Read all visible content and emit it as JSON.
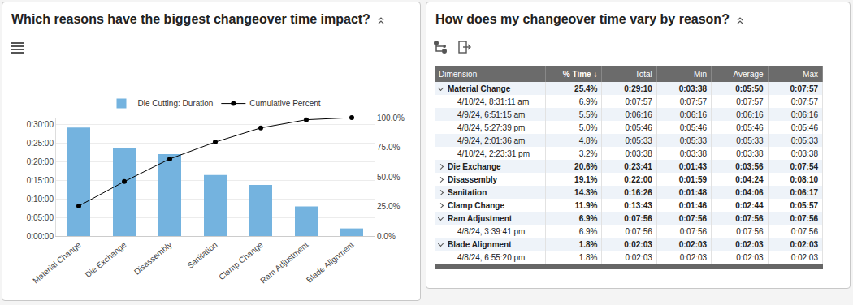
{
  "chart_data": {
    "type": "bar",
    "title": "Which reasons have the biggest changeover time impact?",
    "categories": [
      "Material Change",
      "Die Exchange",
      "Disassembly",
      "Sanitation",
      "Clamp Change",
      "Ram Adjustment",
      "Blade Alignment"
    ],
    "series": [
      {
        "name": "Die Cutting: Duration",
        "type": "bar",
        "color": "#74b3df",
        "values": [
          1750,
          1421,
          1320,
          986,
          823,
          476,
          123
        ]
      },
      {
        "name": "Cumulative Percent",
        "type": "line",
        "axis": "y2",
        "color": "#000000",
        "marker": "circle",
        "values": [
          25.4,
          46.0,
          65.1,
          79.4,
          91.3,
          98.2,
          100.0
        ]
      }
    ],
    "ylim": [
      0,
      1910
    ],
    "yticks": [
      {
        "value": 0,
        "label": "0:00:00"
      },
      {
        "value": 300,
        "label": "0:05:00"
      },
      {
        "value": 600,
        "label": "0:10:00"
      },
      {
        "value": 900,
        "label": "0:15:00"
      },
      {
        "value": 1200,
        "label": "0:20:00"
      },
      {
        "value": 1500,
        "label": "0:25:00"
      },
      {
        "value": 1800,
        "label": "0:30:00"
      }
    ],
    "y2lim": [
      0,
      100
    ],
    "y2ticks": [
      {
        "value": 0,
        "label": "0.0%"
      },
      {
        "value": 25,
        "label": "25.0%"
      },
      {
        "value": 50,
        "label": "50.0%"
      },
      {
        "value": 75,
        "label": "75.0%"
      },
      {
        "value": 100,
        "label": "100.0%"
      }
    ],
    "grid": true,
    "legend": "top"
  },
  "table_panel": {
    "title": "How does my changeover time vary by reason?",
    "columns": [
      "Dimension",
      "% Time ↓",
      "Total",
      "Min",
      "Average",
      "Max"
    ],
    "rows": [
      {
        "level": 0,
        "expanded": true,
        "cells": [
          "Material Change",
          "25.4%",
          "0:29:10",
          "0:03:38",
          "0:05:50",
          "0:07:57"
        ]
      },
      {
        "level": 1,
        "cells": [
          "4/10/24, 8:31:11 am",
          "6.9%",
          "0:07:57",
          "0:07:57",
          "0:07:57",
          "0:07:57"
        ]
      },
      {
        "level": 1,
        "cells": [
          "4/9/24, 6:51:15 am",
          "5.5%",
          "0:06:16",
          "0:06:16",
          "0:06:16",
          "0:06:16"
        ]
      },
      {
        "level": 1,
        "cells": [
          "4/8/24, 5:27:39 pm",
          "5.0%",
          "0:05:46",
          "0:05:46",
          "0:05:46",
          "0:05:46"
        ]
      },
      {
        "level": 1,
        "cells": [
          "4/9/24, 2:01:36 am",
          "4.8%",
          "0:05:33",
          "0:05:33",
          "0:05:33",
          "0:05:33"
        ]
      },
      {
        "level": 1,
        "cells": [
          "4/10/24, 2:23:31 pm",
          "3.2%",
          "0:03:38",
          "0:03:38",
          "0:03:38",
          "0:03:38"
        ]
      },
      {
        "level": 0,
        "expanded": false,
        "cells": [
          "Die Exchange",
          "20.6%",
          "0:23:41",
          "0:01:43",
          "0:03:56",
          "0:07:54"
        ]
      },
      {
        "level": 0,
        "expanded": false,
        "cells": [
          "Disassembly",
          "19.1%",
          "0:22:00",
          "0:01:59",
          "0:04:24",
          "0:08:10"
        ]
      },
      {
        "level": 0,
        "expanded": false,
        "cells": [
          "Sanitation",
          "14.3%",
          "0:16:26",
          "0:01:48",
          "0:04:06",
          "0:06:17"
        ]
      },
      {
        "level": 0,
        "expanded": false,
        "cells": [
          "Clamp Change",
          "11.9%",
          "0:13:43",
          "0:01:46",
          "0:02:44",
          "0:05:57"
        ]
      },
      {
        "level": 0,
        "expanded": true,
        "cells": [
          "Ram Adjustment",
          "6.9%",
          "0:07:56",
          "0:07:56",
          "0:07:56",
          "0:07:56"
        ]
      },
      {
        "level": 1,
        "cells": [
          "4/8/24, 3:39:41 pm",
          "6.9%",
          "0:07:56",
          "0:07:56",
          "0:07:56",
          "0:07:56"
        ]
      },
      {
        "level": 0,
        "expanded": true,
        "cells": [
          "Blade Alignment",
          "1.8%",
          "0:02:03",
          "0:02:03",
          "0:02:03",
          "0:02:03"
        ]
      },
      {
        "level": 1,
        "cells": [
          "4/8/24, 6:55:20 pm",
          "1.8%",
          "0:02:03",
          "0:02:03",
          "0:02:03",
          "0:02:03"
        ]
      }
    ]
  }
}
